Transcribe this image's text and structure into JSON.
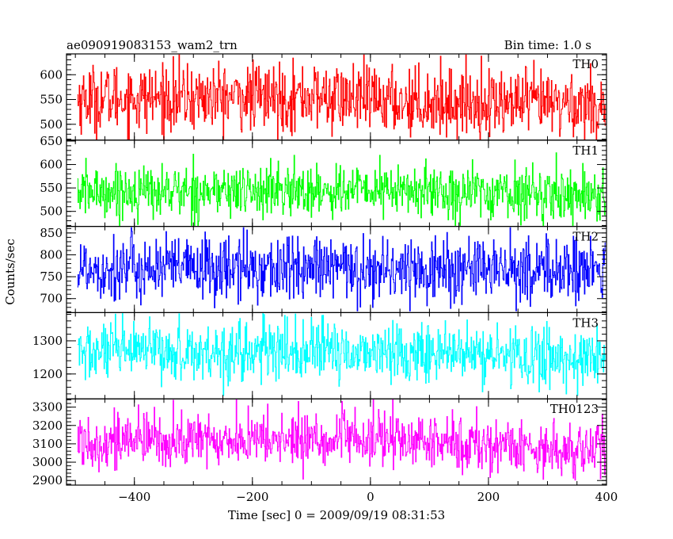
{
  "header": {
    "file_label": "ae090919083153_wam2_trn",
    "bin_label": "Bin time: 1.0 s"
  },
  "axes": {
    "ylabel": "Counts/sec",
    "xlabel": "Time [sec] 0 = 2009/09/19 08:31:53"
  },
  "chart_data": {
    "type": "line",
    "x_range": [
      -515,
      400
    ],
    "x_ticks": [
      -400,
      -200,
      0,
      200,
      400
    ],
    "x_tick_labels": [
      "−400",
      "−200",
      "0",
      "200",
      "400"
    ],
    "x_start": -496,
    "x_end": 398,
    "x_step": 1,
    "panels": [
      {
        "name": "TH0",
        "color": "#ff0000",
        "ylim": [
          468,
          642
        ],
        "yticks": [
          500,
          550,
          600
        ],
        "mean": 550,
        "noise_sd": 34,
        "drift": [
          [
            -496,
            552
          ],
          [
            -100,
            555
          ],
          [
            100,
            545
          ],
          [
            398,
            540
          ]
        ],
        "peak": 640,
        "trough": 468
      },
      {
        "name": "TH1",
        "color": "#00ff00",
        "ylim": [
          468,
          652
        ],
        "yticks": [
          500,
          550,
          600,
          650
        ],
        "mean": 540,
        "noise_sd": 28,
        "drift": [
          [
            -496,
            542
          ],
          [
            0,
            545
          ],
          [
            398,
            535
          ]
        ],
        "peak": 635,
        "trough": 470
      },
      {
        "name": "TH2",
        "color": "#0000ff",
        "ylim": [
          668,
          865
        ],
        "yticks": [
          700,
          750,
          800,
          850
        ],
        "mean": 768,
        "noise_sd": 38,
        "drift": [
          [
            -496,
            770
          ],
          [
            398,
            765
          ]
        ],
        "peak": 862,
        "trough": 672
      },
      {
        "name": "TH3",
        "color": "#00ffff",
        "ylim": [
          1125,
          1385
        ],
        "yticks": [
          1200,
          1300
        ],
        "mean": 1262,
        "noise_sd": 45,
        "drift": [
          [
            -496,
            1265
          ],
          [
            0,
            1268
          ],
          [
            398,
            1245
          ]
        ],
        "peak": 1382,
        "trough": 1135
      },
      {
        "name": "TH0123",
        "color": "#ff00ff",
        "ylim": [
          2875,
          3345
        ],
        "yticks": [
          2900,
          3000,
          3100,
          3200,
          3300
        ],
        "mean": 3115,
        "noise_sd": 75,
        "drift": [
          [
            -496,
            3115
          ],
          [
            0,
            3125
          ],
          [
            398,
            3060
          ]
        ],
        "peak": 3340,
        "trough": 2885
      }
    ]
  }
}
